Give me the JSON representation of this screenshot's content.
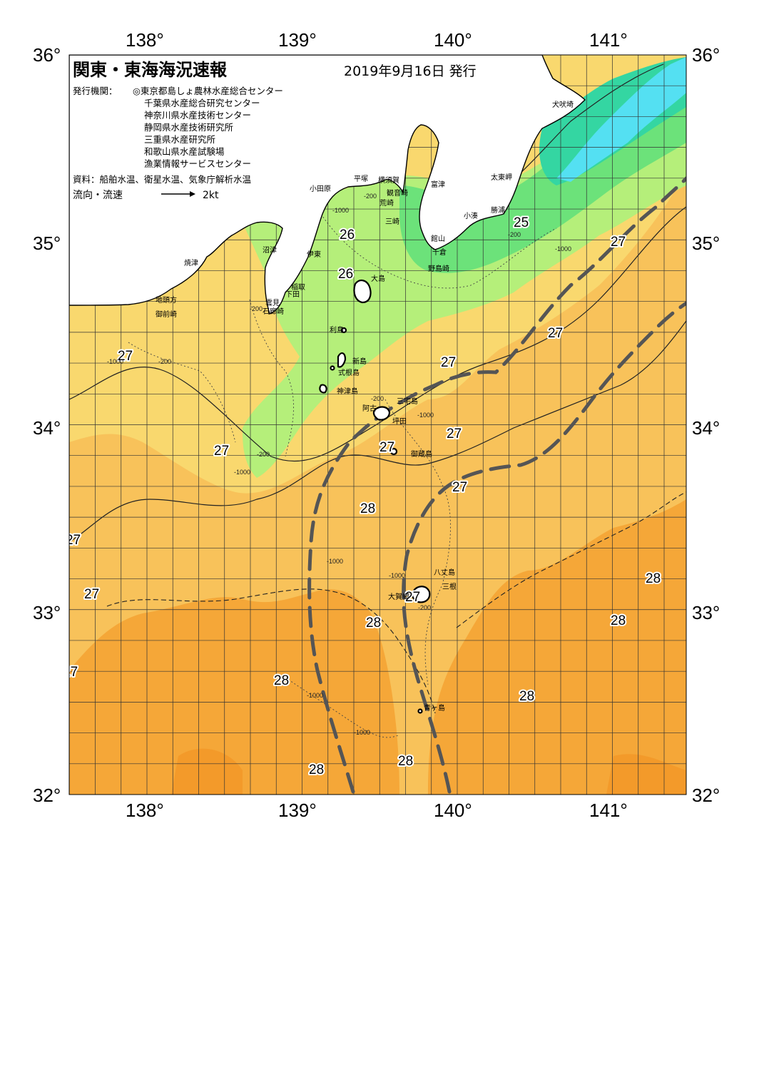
{
  "title": "関東・東海海況速報",
  "issue_date": "2019年9月16日 発行",
  "issuers_label": "発行機関：",
  "issuers": [
    "◎東京都島しょ農林水産総合センター",
    "千葉県水産総合研究センター",
    "神奈川県水産技術センター",
    "静岡県水産技術研究所",
    "三重県水産研究所",
    "和歌山県水産試験場",
    "漁業情報サービスセンター"
  ],
  "sources": "資料：船舶水温、衛星水温、気象庁解析水温",
  "legend": {
    "current_label": "流向・流速",
    "scale_label": "2kt"
  },
  "axes": {
    "lon_ticks": [
      "138°",
      "139°",
      "140°",
      "141°"
    ],
    "lat_ticks": [
      "36°",
      "35°",
      "34°",
      "33°",
      "32°"
    ]
  },
  "colors": {
    "t28": "#f5a738",
    "t27": "#f8c25a",
    "t26": "#f9d86e",
    "t25": "#b5ef7a",
    "t24": "#6ce27a",
    "t22": "#34d6a2",
    "t20": "#54e0f2",
    "kuroshio": "#555555"
  },
  "place_names": [
    "犬吠埼",
    "太東岬",
    "勝浦",
    "小湊",
    "館山",
    "千倉",
    "野島崎",
    "富津",
    "観音崎",
    "横須賀",
    "平塚",
    "荒崎",
    "三崎",
    "小田原",
    "沼津",
    "伊東",
    "稲取",
    "下田",
    "雲見",
    "石廊崎",
    "焼津",
    "地頭方",
    "御前崎",
    "大島",
    "利島",
    "新島",
    "式根島",
    "神津島",
    "三宅島",
    "阿古",
    "坪田",
    "御蔵島",
    "八丈島",
    "三根",
    "大賀郷",
    "青ヶ島"
  ],
  "temperature_labels": [
    "25",
    "26",
    "26",
    "27",
    "27",
    "27",
    "27",
    "27",
    "27",
    "27",
    "27",
    "27",
    "27",
    "27",
    "27",
    "28",
    "28",
    "28",
    "28",
    "28",
    "28",
    "28",
    "28",
    "28"
  ],
  "depth_labels": [
    "-200",
    "-1000",
    "-200",
    "-1000",
    "-200",
    "-1000",
    "-200",
    "-1000",
    "-200",
    "-1000",
    "-1000",
    "-1000",
    "-1000",
    "-1000",
    "-200",
    "-200"
  ]
}
